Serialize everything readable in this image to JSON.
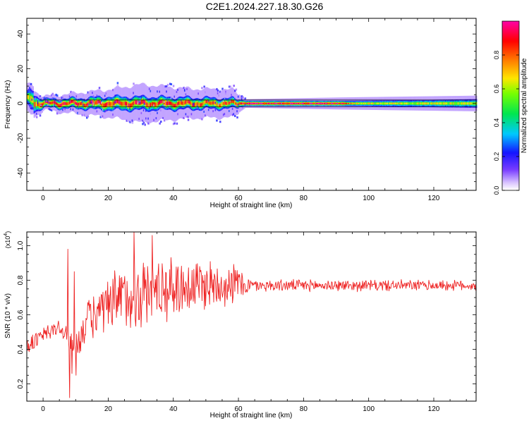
{
  "title": "C2E1.2024.227.18.30.G26",
  "colors": {
    "snr_line": "#ee2222",
    "background": "#ffffff",
    "axis": "#000000"
  },
  "chart_data": [
    {
      "type": "heatmap",
      "xlabel": "Height of straight line (km)",
      "ylabel": "Frequency (Hz)",
      "xlim": [
        -5,
        133
      ],
      "ylim": [
        -50,
        49
      ],
      "x_ticks": [
        0,
        20,
        40,
        60,
        80,
        100,
        120
      ],
      "y_ticks": [
        40,
        20,
        0,
        -20,
        -40
      ],
      "x_tick_labels": [
        "0",
        "20",
        "40",
        "60",
        "80",
        "100",
        "120"
      ],
      "y_tick_labels": [
        "40",
        "20",
        "0",
        "-20",
        "-40"
      ],
      "colorbar": {
        "label": "Normalized spectral amplitude",
        "range": [
          0.0,
          1.0
        ],
        "ticks": [
          0.0,
          0.2,
          0.4,
          0.6,
          0.8
        ],
        "tick_labels": [
          "0.0",
          "0.2",
          "0.4",
          "0.6",
          "0.8"
        ],
        "colormap": "rainbow"
      },
      "ridge": {
        "center_frequency_hz": 0,
        "profile": [
          {
            "x": -5,
            "half_width": 4,
            "noise": 4
          },
          {
            "x": -4,
            "half_width": 6,
            "noise": 3
          },
          {
            "x": 0,
            "half_width": 2.5,
            "noise": 1.5
          },
          {
            "x": 10,
            "half_width": 3,
            "noise": 3
          },
          {
            "x": 20,
            "half_width": 4,
            "noise": 4
          },
          {
            "x": 30,
            "half_width": 4,
            "noise": 7
          },
          {
            "x": 45,
            "half_width": 3.5,
            "noise": 5
          },
          {
            "x": 58,
            "half_width": 3,
            "noise": 5
          },
          {
            "x": 62,
            "half_width": 1.5,
            "noise": 1
          },
          {
            "x": 92,
            "half_width": 1.5,
            "noise": 2
          },
          {
            "x": 133,
            "half_width": 2.5,
            "noise": 2
          }
        ],
        "peak_amplitude": [
          {
            "x": -5,
            "a": 0.6
          },
          {
            "x": 0,
            "a": 0.9
          },
          {
            "x": 60,
            "a": 0.8
          },
          {
            "x": 62,
            "a": 0.97
          },
          {
            "x": 92,
            "a": 0.95
          },
          {
            "x": 95,
            "a": 0.65
          },
          {
            "x": 133,
            "a": 0.6
          }
        ]
      }
    },
    {
      "type": "line",
      "xlabel": "Height of straight line (km)",
      "ylabel": "SNR (10 * v/v)",
      "y_multiplier": "(x10",
      "y_multiplier_exponent": "4",
      "xlim": [
        -5,
        133
      ],
      "ylim": [
        0.1,
        1.08
      ],
      "x_ticks": [
        0,
        20,
        40,
        60,
        80,
        100,
        120
      ],
      "x_tick_labels": [
        "0",
        "20",
        "40",
        "60",
        "80",
        "100",
        "120"
      ],
      "y_ticks": [
        0.2,
        0.4,
        0.6,
        0.8,
        1.0
      ],
      "y_tick_labels": [
        "0.2",
        "0.4",
        "0.6",
        "0.8",
        "1.0"
      ],
      "series": [
        {
          "color": "#ee2222",
          "trend": [
            {
              "x": -5,
              "y": 0.42
            },
            {
              "x": 2,
              "y": 0.5
            },
            {
              "x": 5,
              "y": 0.53
            },
            {
              "x": 8,
              "y": 0.45
            },
            {
              "x": 10,
              "y": 0.42
            },
            {
              "x": 14,
              "y": 0.58
            },
            {
              "x": 20,
              "y": 0.63
            },
            {
              "x": 25,
              "y": 0.7
            },
            {
              "x": 35,
              "y": 0.75
            },
            {
              "x": 45,
              "y": 0.77
            },
            {
              "x": 55,
              "y": 0.78
            },
            {
              "x": 60,
              "y": 0.78
            },
            {
              "x": 64,
              "y": 0.77
            },
            {
              "x": 133,
              "y": 0.77
            }
          ],
          "fluctuation": [
            {
              "x": -5,
              "amp": 0.07
            },
            {
              "x": 5,
              "amp": 0.06
            },
            {
              "x": 9,
              "amp": 0.08
            },
            {
              "x": 15,
              "amp": 0.15
            },
            {
              "x": 25,
              "amp": 0.25
            },
            {
              "x": 35,
              "amp": 0.22
            },
            {
              "x": 50,
              "amp": 0.18
            },
            {
              "x": 60,
              "amp": 0.13
            },
            {
              "x": 64,
              "amp": 0.04
            },
            {
              "x": 133,
              "amp": 0.035
            }
          ],
          "spikes": [
            {
              "x": 7.6,
              "y": 0.98
            },
            {
              "x": 8.2,
              "y": 0.12
            },
            {
              "x": 8.9,
              "y": 0.26
            },
            {
              "x": 9.6,
              "y": 0.85
            },
            {
              "x": 10.2,
              "y": 0.25
            },
            {
              "x": 28.0,
              "y": 1.08
            },
            {
              "x": 33.5,
              "y": 1.06
            }
          ]
        }
      ]
    }
  ]
}
